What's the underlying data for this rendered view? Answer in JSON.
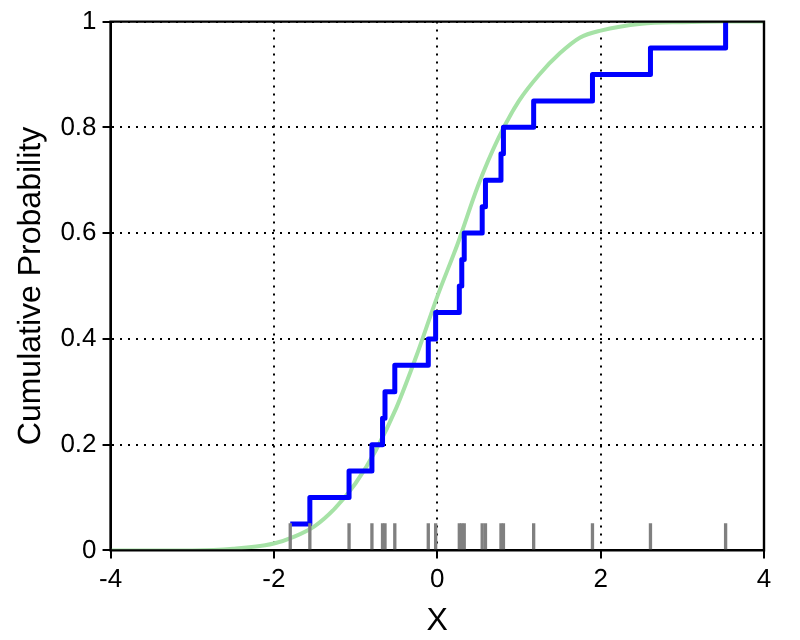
{
  "chart_data": {
    "type": "line",
    "xlabel": "X",
    "ylabel": "Cumulative Probability",
    "xlim": [
      -4,
      4
    ],
    "xticks": [
      -4,
      -2,
      0,
      2,
      4
    ],
    "ylim": [
      0,
      1
    ],
    "yticks": [
      0,
      0.2,
      0.4,
      0.6,
      0.8,
      1
    ],
    "grid": true,
    "legend": false,
    "series": [
      {
        "color": "#a6e2a6",
        "x": [
          -4,
          -3.5,
          -3,
          -2.5,
          -2,
          -1.75,
          -1.5,
          -1.25,
          -1,
          -0.75,
          -0.5,
          -0.25,
          0,
          0.25,
          0.5,
          0.75,
          1,
          1.25,
          1.5,
          1.75,
          2,
          2.5,
          3,
          3.5,
          4
        ],
        "values": [
          0,
          0,
          0,
          0.003,
          0.013,
          0.026,
          0.046,
          0.08,
          0.127,
          0.19,
          0.27,
          0.37,
          0.48,
          0.58,
          0.69,
          0.78,
          0.85,
          0.9,
          0.94,
          0.97,
          0.983,
          0.996,
          0.999,
          1,
          1
        ]
      },
      {
        "type": "bar",
        "color": "#808080",
        "x": [
          -1.8,
          -1.56,
          -1.08,
          -0.8,
          -0.67,
          -0.64,
          -0.52,
          -0.11,
          -0.02,
          0.27,
          0.3,
          0.33,
          0.55,
          0.59,
          0.78,
          0.81,
          1.18,
          1.9,
          2.61,
          3.53
        ],
        "values": [
          0.05,
          0.05,
          0.05,
          0.05,
          0.05,
          0.05,
          0.05,
          0.05,
          0.05,
          0.05,
          0.05,
          0.05,
          0.05,
          0.05,
          0.05,
          0.05,
          0.05,
          0.05,
          0.05,
          0.05
        ]
      },
      {
        "type": "step",
        "color": "#0000ff",
        "x": [
          -1.8,
          -1.56,
          -1.08,
          -0.8,
          -0.67,
          -0.64,
          -0.52,
          -0.11,
          -0.02,
          0.27,
          0.3,
          0.33,
          0.55,
          0.59,
          0.78,
          0.81,
          1.18,
          1.9,
          2.61,
          3.53
        ],
        "values": [
          0.05,
          0.1,
          0.15,
          0.2,
          0.25,
          0.3,
          0.35,
          0.4,
          0.45,
          0.5,
          0.55,
          0.6,
          0.65,
          0.7,
          0.75,
          0.8,
          0.85,
          0.9,
          0.95,
          1
        ]
      }
    ]
  }
}
